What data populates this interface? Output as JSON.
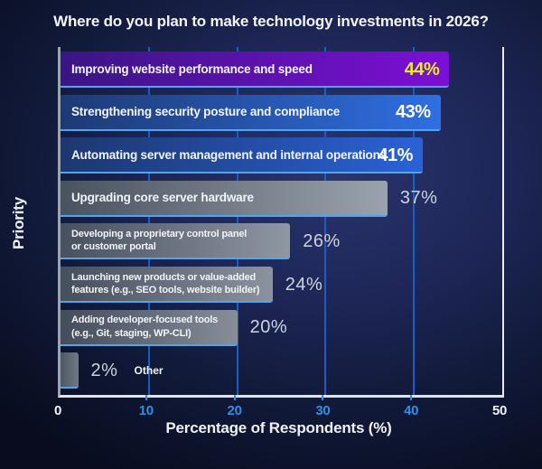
{
  "chart_data": {
    "type": "bar",
    "orientation": "horizontal",
    "title": "Where do you plan to make technology investments in 2026?",
    "xlabel": "Percentage of Respondents (%)",
    "ylabel": "Priority",
    "xlim": [
      0,
      50
    ],
    "xticks": [
      "0",
      "10",
      "20",
      "30",
      "40",
      "50"
    ],
    "grid": "vertical",
    "legend": "none",
    "categories": [
      "Improving website performance and speed",
      "Strengthening security posture and compliance",
      "Automating server management and internal operations",
      "Upgrading core server hardware",
      "Developing a proprietary control panel\nor customer portal",
      "Launching new products or value-added\nfeatures (e.g., SEO tools, website builder)",
      "Adding developer-focused tools\n(e.g., Git, staging, WP-CLI)",
      "Other"
    ],
    "values": [
      44,
      43,
      41,
      37,
      26,
      24,
      20,
      2
    ],
    "bars": [
      {
        "label": "Improving website performance and speed",
        "value": 44,
        "display": "44%",
        "value_position": "inside",
        "value_color": "#e6ee1e",
        "label_position": "inside",
        "gradient": [
          "#3a1583",
          "#7c0fd6"
        ]
      },
      {
        "label": "Strengthening security posture and compliance",
        "value": 43,
        "display": "43%",
        "value_position": "inside",
        "value_color": "#ffffff",
        "label_position": "inside",
        "gradient": [
          "#1e3a74",
          "#2f6fe2"
        ]
      },
      {
        "label": "Automating server management and internal operations",
        "value": 41,
        "display": "41%",
        "value_position": "inside",
        "value_color": "#ffffff",
        "label_position": "inside",
        "gradient": [
          "#1d376f",
          "#2a62d6"
        ]
      },
      {
        "label": "Upgrading core server hardware",
        "value": 37,
        "display": "37%",
        "value_position": "outside",
        "value_color": "#ccd4dd",
        "label_position": "inside",
        "gradient": [
          "#49525f",
          "#9aa3ad"
        ]
      },
      {
        "label": "Developing a proprietary control panel\nor customer portal",
        "value": 26,
        "display": "26%",
        "value_position": "outside",
        "value_color": "#ccd4dd",
        "label_position": "inside",
        "gradient": [
          "#47505d",
          "#8e97a2"
        ]
      },
      {
        "label": "Launching new products or value-added\nfeatures (e.g., SEO tools, website builder)",
        "value": 24,
        "display": "24%",
        "value_position": "outside",
        "value_color": "#ccd4dd",
        "label_position": "inside",
        "gradient": [
          "#454e5b",
          "#8a939e"
        ]
      },
      {
        "label": "Adding developer-focused tools\n(e.g., Git, staging, WP-CLI)",
        "value": 20,
        "display": "20%",
        "value_position": "outside",
        "value_color": "#ccd4dd",
        "label_position": "inside",
        "gradient": [
          "#434c59",
          "#858e99"
        ]
      },
      {
        "label": "Other",
        "value": 2,
        "display": "2%",
        "value_position": "outside",
        "value_color": "#ccd4dd",
        "label_position": "outside",
        "gradient": [
          "#4e5764",
          "#6f7884"
        ]
      }
    ]
  },
  "colors": {
    "background_center": "#2b356f",
    "background_edge": "#080c1e",
    "gridline": "#1563cc",
    "tick_label_edge": "#f0f3f7",
    "tick_label_mid": "#2e8fe6",
    "bar_underline": "#50a5f0",
    "highlight_value": "#e6ee1e",
    "axis_spine": "#dfe4ea"
  }
}
